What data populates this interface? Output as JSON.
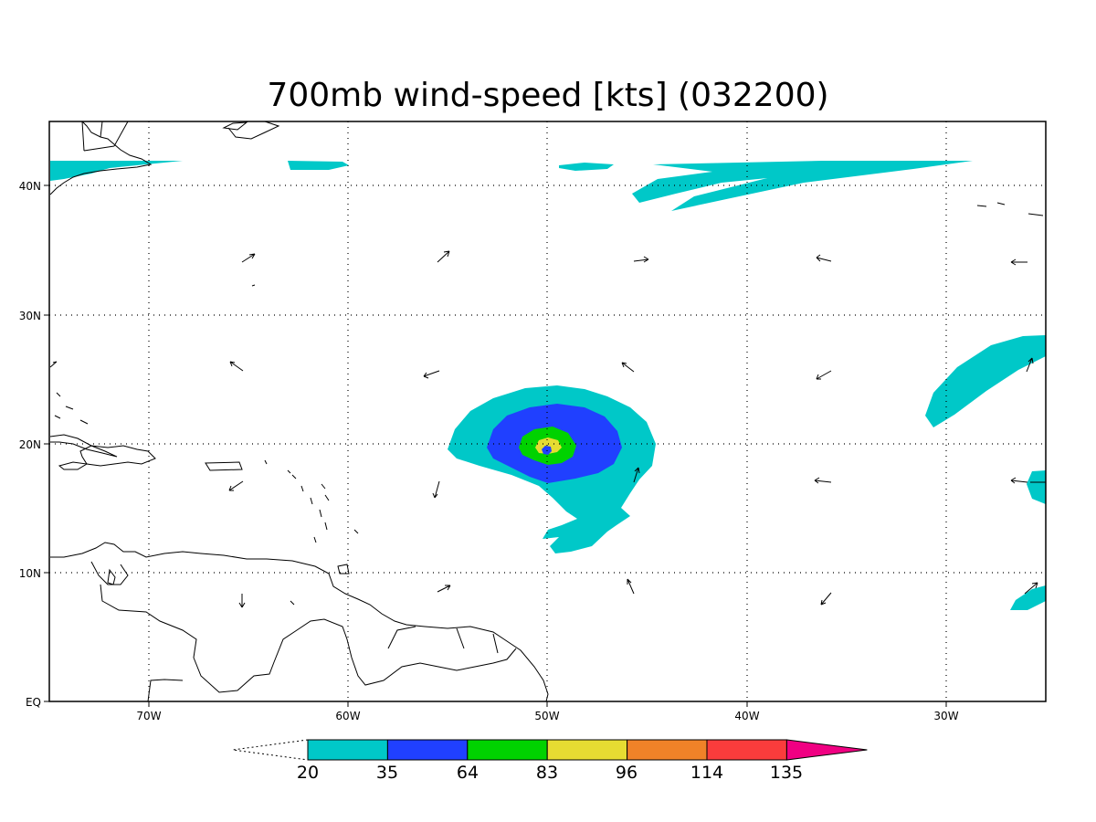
{
  "title": "700mb wind-speed [kts] (032200)",
  "map": {
    "lon_ticks": [
      "70W",
      "60W",
      "50W",
      "40W",
      "30W"
    ],
    "lat_ticks": [
      "40N",
      "30N",
      "20N",
      "10N",
      "EQ"
    ],
    "grid": "dotted"
  },
  "colorbar": {
    "levels": [
      "20",
      "35",
      "64",
      "83",
      "96",
      "114",
      "135"
    ],
    "colors": [
      "#00c8c8",
      "#2040ff",
      "#00d200",
      "#e6dc32",
      "#f08228",
      "#fa3c3c",
      "#f00082"
    ]
  }
}
